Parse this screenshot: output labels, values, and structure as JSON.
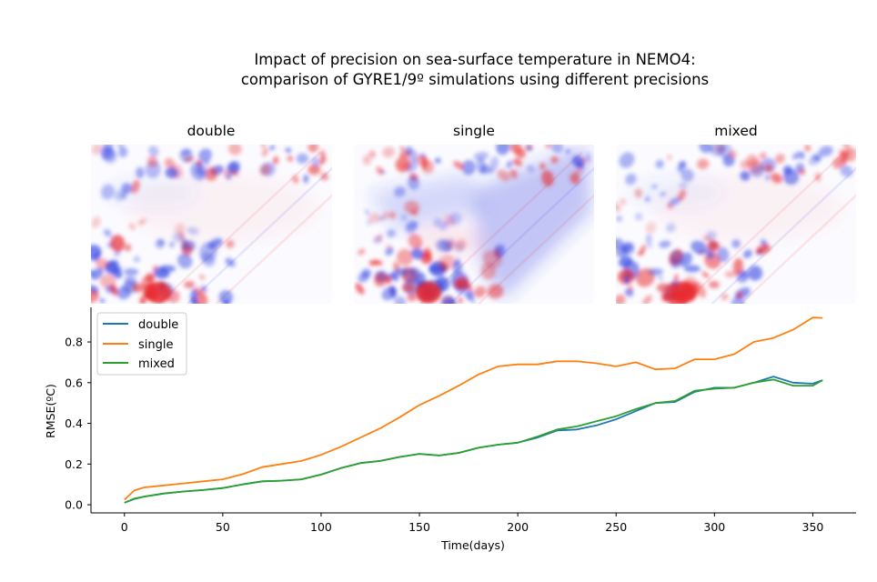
{
  "figure": {
    "title_line1": "Impact of precision on sea-surface temperature in NEMO4:",
    "title_line2": "comparison of GYRE1/9º simulations using different precisions"
  },
  "panels": [
    {
      "title": "double",
      "variant": "double"
    },
    {
      "title": "single",
      "variant": "single"
    },
    {
      "title": "mixed",
      "variant": "mixed"
    }
  ],
  "colors": {
    "double": "#1f77b4",
    "single": "#ff7f0e",
    "mixed": "#2ca02c",
    "warm": "#e8262a",
    "cool": "#2b3ee0"
  },
  "chart_data": {
    "type": "line",
    "xlabel": "Time(days)",
    "ylabel": "RMSE(ºC)",
    "xlim": [
      -17,
      372
    ],
    "ylim": [
      -0.04,
      0.97
    ],
    "xticks": [
      0,
      50,
      100,
      150,
      200,
      250,
      300,
      350
    ],
    "yticks": [
      0.0,
      0.2,
      0.4,
      0.6,
      0.8
    ],
    "ytick_labels": [
      "0.0",
      "0.2",
      "0.4",
      "0.6",
      "0.8"
    ],
    "legend_position": "upper-left",
    "series": [
      {
        "name": "double",
        "color": "#1f77b4",
        "points": [
          [
            0,
            0.01
          ],
          [
            5,
            0.028
          ],
          [
            10,
            0.04
          ],
          [
            20,
            0.055
          ],
          [
            30,
            0.065
          ],
          [
            40,
            0.072
          ],
          [
            50,
            0.082
          ],
          [
            60,
            0.1
          ],
          [
            70,
            0.115
          ],
          [
            80,
            0.118
          ],
          [
            90,
            0.125
          ],
          [
            100,
            0.148
          ],
          [
            110,
            0.18
          ],
          [
            120,
            0.205
          ],
          [
            130,
            0.215
          ],
          [
            140,
            0.235
          ],
          [
            150,
            0.25
          ],
          [
            160,
            0.242
          ],
          [
            170,
            0.255
          ],
          [
            180,
            0.28
          ],
          [
            190,
            0.295
          ],
          [
            200,
            0.305
          ],
          [
            210,
            0.33
          ],
          [
            220,
            0.365
          ],
          [
            230,
            0.37
          ],
          [
            240,
            0.39
          ],
          [
            250,
            0.42
          ],
          [
            260,
            0.46
          ],
          [
            270,
            0.5
          ],
          [
            280,
            0.505
          ],
          [
            290,
            0.555
          ],
          [
            300,
            0.575
          ],
          [
            310,
            0.575
          ],
          [
            320,
            0.6
          ],
          [
            330,
            0.63
          ],
          [
            340,
            0.6
          ],
          [
            350,
            0.595
          ],
          [
            355,
            0.612
          ]
        ]
      },
      {
        "name": "single",
        "color": "#ff7f0e",
        "points": [
          [
            0,
            0.025
          ],
          [
            5,
            0.07
          ],
          [
            10,
            0.085
          ],
          [
            20,
            0.095
          ],
          [
            30,
            0.105
          ],
          [
            40,
            0.115
          ],
          [
            50,
            0.125
          ],
          [
            60,
            0.15
          ],
          [
            70,
            0.185
          ],
          [
            80,
            0.2
          ],
          [
            90,
            0.215
          ],
          [
            100,
            0.245
          ],
          [
            110,
            0.285
          ],
          [
            120,
            0.33
          ],
          [
            130,
            0.375
          ],
          [
            140,
            0.43
          ],
          [
            150,
            0.49
          ],
          [
            160,
            0.535
          ],
          [
            170,
            0.585
          ],
          [
            180,
            0.64
          ],
          [
            190,
            0.68
          ],
          [
            200,
            0.69
          ],
          [
            210,
            0.69
          ],
          [
            220,
            0.705
          ],
          [
            230,
            0.705
          ],
          [
            240,
            0.695
          ],
          [
            250,
            0.68
          ],
          [
            260,
            0.7
          ],
          [
            270,
            0.665
          ],
          [
            280,
            0.67
          ],
          [
            290,
            0.715
          ],
          [
            300,
            0.715
          ],
          [
            310,
            0.74
          ],
          [
            320,
            0.8
          ],
          [
            330,
            0.82
          ],
          [
            340,
            0.86
          ],
          [
            350,
            0.92
          ],
          [
            355,
            0.918
          ]
        ]
      },
      {
        "name": "mixed",
        "color": "#2ca02c",
        "points": [
          [
            0,
            0.01
          ],
          [
            5,
            0.03
          ],
          [
            10,
            0.04
          ],
          [
            20,
            0.055
          ],
          [
            30,
            0.065
          ],
          [
            40,
            0.072
          ],
          [
            50,
            0.082
          ],
          [
            60,
            0.1
          ],
          [
            70,
            0.115
          ],
          [
            80,
            0.118
          ],
          [
            90,
            0.125
          ],
          [
            100,
            0.148
          ],
          [
            110,
            0.18
          ],
          [
            120,
            0.205
          ],
          [
            130,
            0.215
          ],
          [
            140,
            0.235
          ],
          [
            150,
            0.25
          ],
          [
            160,
            0.242
          ],
          [
            170,
            0.255
          ],
          [
            180,
            0.28
          ],
          [
            190,
            0.295
          ],
          [
            200,
            0.305
          ],
          [
            210,
            0.335
          ],
          [
            220,
            0.37
          ],
          [
            230,
            0.385
          ],
          [
            240,
            0.41
          ],
          [
            250,
            0.435
          ],
          [
            260,
            0.47
          ],
          [
            270,
            0.5
          ],
          [
            280,
            0.51
          ],
          [
            290,
            0.56
          ],
          [
            300,
            0.57
          ],
          [
            310,
            0.575
          ],
          [
            320,
            0.6
          ],
          [
            330,
            0.615
          ],
          [
            340,
            0.585
          ],
          [
            350,
            0.585
          ],
          [
            355,
            0.612
          ]
        ]
      }
    ]
  }
}
